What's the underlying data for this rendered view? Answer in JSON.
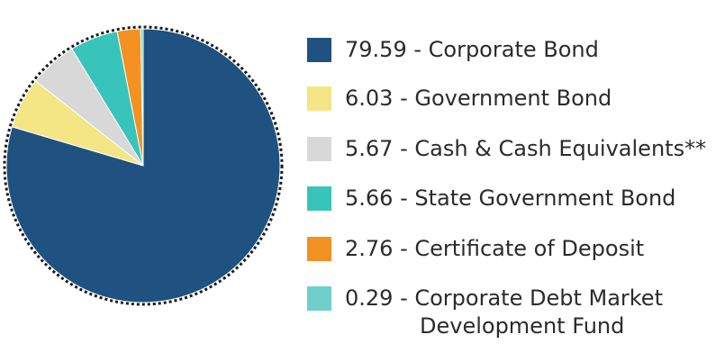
{
  "chart_data": {
    "type": "pie",
    "title": "",
    "slices": [
      {
        "value": 79.59,
        "value_label": "79.59",
        "label": "Corporate Bond",
        "color": "#1f5280"
      },
      {
        "value": 6.03,
        "value_label": "6.03",
        "label": "Government Bond",
        "color": "#f4e585"
      },
      {
        "value": 5.67,
        "value_label": "5.67",
        "label": "Cash & Cash Equivalents**",
        "color": "#d8d8d8"
      },
      {
        "value": 5.66,
        "value_label": "5.66",
        "label": "State Government Bond",
        "color": "#38c4ba"
      },
      {
        "value": 2.76,
        "value_label": "2.76",
        "label": "Certificate of Deposit",
        "color": "#f39222"
      },
      {
        "value": 0.29,
        "value_label": "0.29",
        "label": "Corporate Debt Market",
        "label_line2": "Development Fund",
        "color": "#6fcfca"
      }
    ],
    "legend_position": "right",
    "separator": " - ",
    "outline": "dotted"
  }
}
